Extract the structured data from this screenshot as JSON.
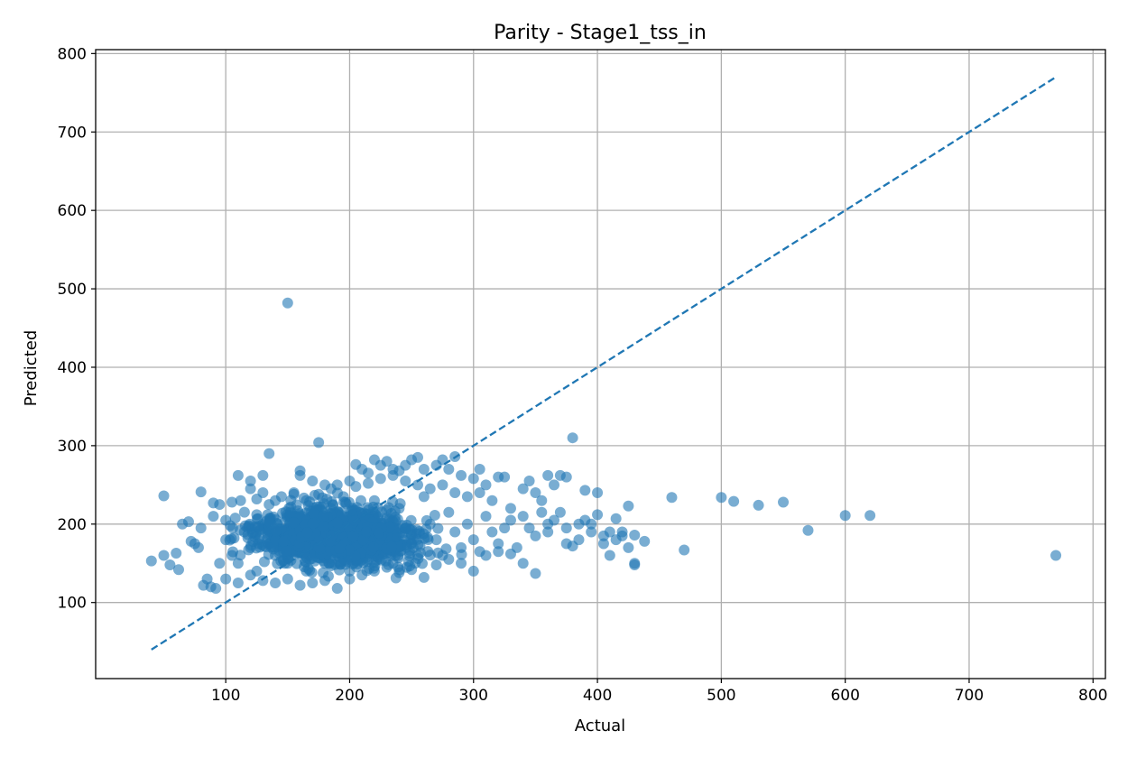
{
  "chart_data": {
    "type": "scatter",
    "title": "Parity - Stage1_tss_in",
    "xlabel": "Actual",
    "ylabel": "Predicted",
    "xlim": [
      -5,
      810
    ],
    "ylim": [
      3,
      805
    ],
    "xticks": [
      100,
      200,
      300,
      400,
      500,
      600,
      700,
      800
    ],
    "yticks": [
      100,
      200,
      300,
      400,
      500,
      600,
      700,
      800
    ],
    "grid": true,
    "point_color": "#1f77b4",
    "point_alpha": 0.6,
    "dense_cluster": {
      "x_range": [
        80,
        330
      ],
      "y_range": [
        120,
        270
      ],
      "description_center": [
        190,
        185
      ]
    },
    "series": [
      {
        "type": "scatter",
        "points": [
          [
            40,
            153
          ],
          [
            50,
            236
          ],
          [
            50,
            160
          ],
          [
            55,
            148
          ],
          [
            60,
            163
          ],
          [
            62,
            142
          ],
          [
            65,
            200
          ],
          [
            70,
            203
          ],
          [
            72,
            178
          ],
          [
            75,
            175
          ],
          [
            78,
            170
          ],
          [
            80,
            241
          ],
          [
            80,
            195
          ],
          [
            82,
            122
          ],
          [
            85,
            130
          ],
          [
            88,
            120
          ],
          [
            90,
            227
          ],
          [
            90,
            210
          ],
          [
            92,
            118
          ],
          [
            95,
            225
          ],
          [
            100,
            205
          ],
          [
            105,
            228
          ],
          [
            110,
            262
          ],
          [
            112,
            230
          ],
          [
            120,
            255
          ],
          [
            120,
            245
          ],
          [
            125,
            212
          ],
          [
            130,
            262
          ],
          [
            130,
            240
          ],
          [
            135,
            290
          ],
          [
            140,
            230
          ],
          [
            150,
            482
          ],
          [
            155,
            238
          ],
          [
            160,
            268
          ],
          [
            160,
            262
          ],
          [
            170,
            255
          ],
          [
            175,
            304
          ],
          [
            180,
            250
          ],
          [
            190,
            250
          ],
          [
            200,
            255
          ],
          [
            205,
            276
          ],
          [
            210,
            270
          ],
          [
            215,
            265
          ],
          [
            220,
            282
          ],
          [
            225,
            275
          ],
          [
            230,
            280
          ],
          [
            235,
            270
          ],
          [
            240,
            268
          ],
          [
            245,
            275
          ],
          [
            250,
            282
          ],
          [
            255,
            285
          ],
          [
            260,
            270
          ],
          [
            270,
            275
          ],
          [
            275,
            282
          ],
          [
            280,
            270
          ],
          [
            285,
            286
          ],
          [
            290,
            262
          ],
          [
            300,
            258
          ],
          [
            305,
            270
          ],
          [
            310,
            250
          ],
          [
            320,
            260
          ],
          [
            325,
            260
          ],
          [
            330,
            205
          ],
          [
            330,
            162
          ],
          [
            335,
            170
          ],
          [
            340,
            245
          ],
          [
            340,
            150
          ],
          [
            345,
            255
          ],
          [
            350,
            240
          ],
          [
            350,
            137
          ],
          [
            355,
            230
          ],
          [
            360,
            262
          ],
          [
            360,
            200
          ],
          [
            365,
            250
          ],
          [
            370,
            262
          ],
          [
            375,
            260
          ],
          [
            375,
            175
          ],
          [
            380,
            310
          ],
          [
            380,
            172
          ],
          [
            385,
            200
          ],
          [
            390,
            243
          ],
          [
            395,
            200
          ],
          [
            400,
            240
          ],
          [
            400,
            212
          ],
          [
            405,
            185
          ],
          [
            410,
            190
          ],
          [
            410,
            160
          ],
          [
            415,
            207
          ],
          [
            420,
            185
          ],
          [
            425,
            223
          ],
          [
            430,
            186
          ],
          [
            430,
            150
          ],
          [
            430,
            148
          ],
          [
            438,
            178
          ],
          [
            460,
            234
          ],
          [
            470,
            167
          ],
          [
            500,
            234
          ],
          [
            510,
            229
          ],
          [
            530,
            224
          ],
          [
            550,
            228
          ],
          [
            570,
            192
          ],
          [
            600,
            211
          ],
          [
            620,
            211
          ],
          [
            770,
            160
          ],
          [
            100,
            180
          ],
          [
            105,
            160
          ],
          [
            110,
            150
          ],
          [
            115,
            190
          ],
          [
            120,
            170
          ],
          [
            125,
            140
          ],
          [
            130,
            200
          ],
          [
            135,
            175
          ],
          [
            140,
            160
          ],
          [
            145,
            190
          ],
          [
            150,
            150
          ],
          [
            155,
            210
          ],
          [
            160,
            180
          ],
          [
            165,
            140
          ],
          [
            170,
            200
          ],
          [
            175,
            170
          ],
          [
            180,
            150
          ],
          [
            185,
            220
          ],
          [
            190,
            180
          ],
          [
            195,
            160
          ],
          [
            200,
            140
          ],
          [
            205,
            200
          ],
          [
            210,
            175
          ],
          [
            215,
            155
          ],
          [
            220,
            230
          ],
          [
            225,
            190
          ],
          [
            230,
            170
          ],
          [
            235,
            150
          ],
          [
            240,
            220
          ],
          [
            245,
            195
          ],
          [
            250,
            175
          ],
          [
            255,
            160
          ],
          [
            260,
            235
          ],
          [
            265,
            200
          ],
          [
            270,
            180
          ],
          [
            275,
            160
          ],
          [
            280,
            215
          ],
          [
            285,
            190
          ],
          [
            290,
            170
          ],
          [
            295,
            200
          ],
          [
            300,
            180
          ],
          [
            305,
            165
          ],
          [
            310,
            210
          ],
          [
            315,
            190
          ],
          [
            320,
            175
          ],
          [
            325,
            195
          ],
          [
            95,
            150
          ],
          [
            100,
            130
          ],
          [
            110,
            125
          ],
          [
            120,
            135
          ],
          [
            130,
            128
          ],
          [
            140,
            125
          ],
          [
            150,
            130
          ],
          [
            160,
            122
          ],
          [
            170,
            125
          ],
          [
            180,
            128
          ],
          [
            190,
            118
          ],
          [
            200,
            130
          ],
          [
            210,
            135
          ],
          [
            220,
            140
          ],
          [
            230,
            145
          ],
          [
            240,
            138
          ],
          [
            250,
            142
          ],
          [
            260,
            132
          ],
          [
            270,
            148
          ],
          [
            280,
            155
          ],
          [
            290,
            150
          ],
          [
            300,
            140
          ],
          [
            310,
            160
          ],
          [
            320,
            165
          ],
          [
            125,
            232
          ],
          [
            135,
            225
          ],
          [
            145,
            235
          ],
          [
            155,
            240
          ],
          [
            165,
            230
          ],
          [
            175,
            238
          ],
          [
            185,
            245
          ],
          [
            195,
            235
          ],
          [
            205,
            248
          ],
          [
            215,
            252
          ],
          [
            225,
            258
          ],
          [
            235,
            262
          ],
          [
            245,
            255
          ],
          [
            255,
            250
          ],
          [
            265,
            245
          ],
          [
            275,
            250
          ],
          [
            285,
            240
          ],
          [
            295,
            235
          ],
          [
            305,
            240
          ],
          [
            315,
            230
          ],
          [
            330,
            220
          ],
          [
            340,
            210
          ],
          [
            345,
            195
          ],
          [
            350,
            185
          ],
          [
            355,
            215
          ],
          [
            360,
            190
          ],
          [
            365,
            205
          ],
          [
            370,
            215
          ],
          [
            375,
            195
          ],
          [
            385,
            180
          ],
          [
            390,
            205
          ],
          [
            395,
            190
          ],
          [
            405,
            175
          ],
          [
            415,
            180
          ],
          [
            420,
            190
          ],
          [
            425,
            170
          ]
        ]
      },
      {
        "type": "line",
        "style": "dashed",
        "name": "",
        "points": [
          [
            40,
            40
          ],
          [
            770,
            770
          ]
        ]
      }
    ]
  }
}
